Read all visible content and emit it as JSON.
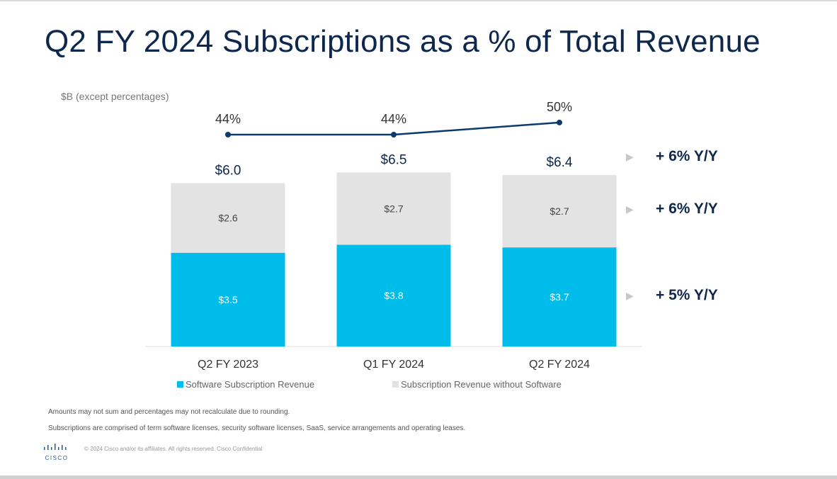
{
  "slide": {
    "title": "Q2 FY 2024 Subscriptions as a % of Total Revenue",
    "unit_note": "$B (except percentages)",
    "notes": [
      "Amounts may not sum and percentages may not recalculate due to rounding.",
      "Subscriptions are comprised of term software licenses, security software licenses, SaaS, service arrangements and operating leases."
    ],
    "footer": "© 2024 Cisco and/or its affiliates. All rights reserved. Cisco Confidential",
    "logo_text": "CISCO"
  },
  "chart_data": {
    "type": "bar",
    "stacked": true,
    "categories": [
      "Q2 FY 2023",
      "Q1 FY 2024",
      "Q2 FY 2024"
    ],
    "series": [
      {
        "name": "Software Subscription Revenue",
        "values": [
          3.5,
          3.8,
          3.7
        ],
        "labels": [
          "$3.5",
          "$3.8",
          "$3.7"
        ],
        "color": "#00bceb"
      },
      {
        "name": "Subscription Revenue without Software",
        "values": [
          2.6,
          2.7,
          2.7
        ],
        "labels": [
          "$2.6",
          "$2.7",
          "$2.7"
        ],
        "color": "#e3e3e3"
      }
    ],
    "totals": [
      6.0,
      6.5,
      6.4
    ],
    "total_labels": [
      "$6.0",
      "$6.5",
      "$6.4"
    ],
    "line": {
      "type": "line",
      "values": [
        44,
        44,
        50
      ],
      "labels": [
        "44%",
        "44%",
        "50%"
      ],
      "color": "#0d3a6e"
    },
    "yoy": [
      {
        "text": "+ 6% Y/Y",
        "refers_to": "total"
      },
      {
        "text": "+ 6% Y/Y",
        "refers_to": "Subscription Revenue without Software"
      },
      {
        "text": "+ 5% Y/Y",
        "refers_to": "Software Subscription Revenue"
      }
    ],
    "legend_position": "bottom",
    "grid": false
  }
}
